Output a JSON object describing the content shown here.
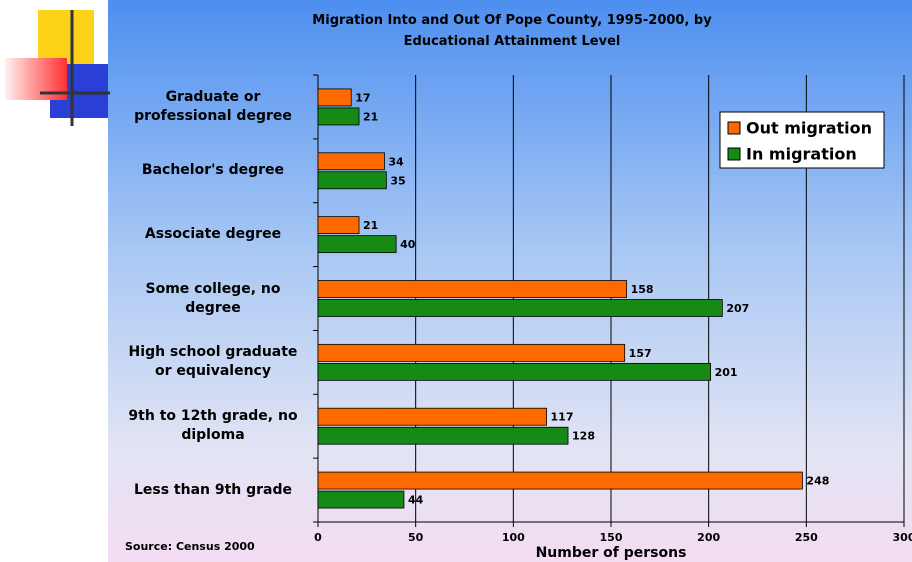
{
  "chart_data": {
    "type": "bar",
    "orientation": "horizontal",
    "title": "Migration Into and Out Of Pope County, 1995-2000, by Educational Attainment Level",
    "x_label": "Number of persons",
    "source": "Source: Census 2000",
    "categories": [
      "Graduate or professional degree",
      "Bachelor's degree",
      "Associate degree",
      "Some college, no degree",
      "High school graduate or equivalency",
      "9th to 12th grade, no diploma",
      "Less than 9th grade"
    ],
    "series": [
      {
        "name": "Out migration",
        "color": "#ff6a00",
        "values": [
          17,
          34,
          21,
          158,
          157,
          117,
          248
        ]
      },
      {
        "name": "In migration",
        "color": "#158a15",
        "values": [
          21,
          35,
          40,
          207,
          201,
          128,
          44
        ]
      }
    ],
    "xlim": [
      0,
      300
    ],
    "xticks": [
      0,
      50,
      100,
      150,
      200,
      250,
      300
    ],
    "grid": true,
    "legend": "upper right"
  }
}
